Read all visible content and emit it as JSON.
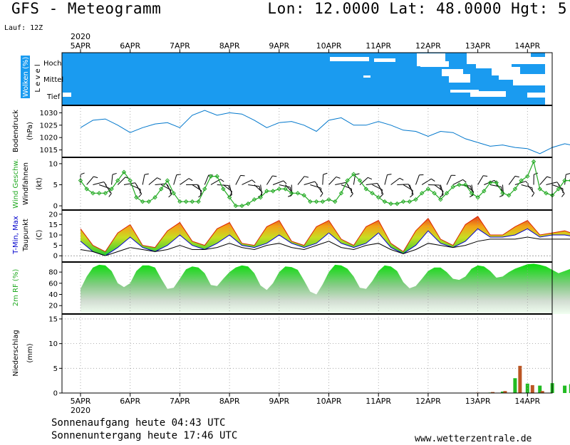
{
  "header": {
    "title": "GFS - Meteogramm",
    "coords": "Lon: 12.0000 Lat: 48.0000 Hgt: 5",
    "run": "Lauf: 12Z"
  },
  "dates": {
    "year": "2020",
    "labels": [
      "5APR",
      "6APR",
      "7APR",
      "8APR",
      "9APR",
      "10APR",
      "11APR",
      "12APR",
      "13APR",
      "14APR"
    ]
  },
  "footer": {
    "sunrise": "Sonnenaufgang heute 04:43 UTC",
    "sunset": "Sonnenuntergang heute 17:46 UTC",
    "credit": "www.wetterzentrale.de"
  },
  "colors": {
    "clouds_bg": "#1a9bf0",
    "pressure": "#0077cc",
    "wind": "#22aa22",
    "tmin": "#0000cc",
    "tmax": "#dd2200",
    "dewpoint": "#000000",
    "rh": "#22c822",
    "precip_green": "#22bb22",
    "precip_brown": "#bb5522"
  },
  "chart_data": [
    {
      "type": "heatmap",
      "panel": "clouds",
      "ylabel": "Wolken (%)",
      "ylabel2": "L e v e l",
      "levels": [
        "Hoch",
        "Mittel",
        "Tief"
      ],
      "note": "cloud cover mostly 100% with gaps from 10APR onward"
    },
    {
      "type": "line",
      "panel": "pressure",
      "ylabel": "Bodendruck",
      "ylabel2": "(hPa)",
      "ylim": [
        1012,
        1033
      ],
      "yticks": [
        1015,
        1020,
        1025,
        1030
      ],
      "x_days": [
        0,
        0.25,
        0.5,
        0.75,
        1,
        1.25,
        1.5,
        1.75,
        2,
        2.25,
        2.5,
        2.75,
        3,
        3.25,
        3.5,
        3.75,
        4,
        4.25,
        4.5,
        4.75,
        5,
        5.25,
        5.5,
        5.75,
        6,
        6.25,
        6.5,
        6.75,
        7,
        7.25,
        7.5,
        7.75,
        8,
        8.25,
        8.5,
        8.75,
        9,
        9.25,
        9.5,
        9.75,
        10
      ],
      "values": [
        1024,
        1027,
        1027.5,
        1025,
        1022,
        1024,
        1025.5,
        1026,
        1024,
        1029,
        1031,
        1029,
        1030,
        1029.5,
        1027,
        1024,
        1026,
        1026.5,
        1025,
        1022.5,
        1027,
        1028,
        1025,
        1025,
        1026.5,
        1025,
        1023,
        1022.5,
        1020.5,
        1022.5,
        1022,
        1019.5,
        1018,
        1016.5,
        1017,
        1016,
        1015.5,
        1013.5,
        1016,
        1017.5,
        1016.5
      ]
    },
    {
      "type": "line",
      "panel": "wind",
      "ylabel": "Wind Geschw.",
      "ylabel2": "Windfahnen",
      "ylabel3": "(kt)",
      "ylim": [
        -1,
        11.5
      ],
      "yticks": [
        0,
        5,
        10
      ],
      "x_days": [
        0,
        0.125,
        0.25,
        0.375,
        0.5,
        0.625,
        0.75,
        0.875,
        1,
        1.125,
        1.25,
        1.375,
        1.5,
        1.625,
        1.75,
        1.875,
        2,
        2.125,
        2.25,
        2.375,
        2.5,
        2.625,
        2.75,
        2.875,
        3,
        3.125,
        3.25,
        3.375,
        3.5,
        3.625,
        3.75,
        3.875,
        4,
        4.125,
        4.25,
        4.375,
        4.5,
        4.625,
        4.75,
        4.875,
        5,
        5.125,
        5.25,
        5.375,
        5.5,
        5.625,
        5.75,
        5.875,
        6,
        6.125,
        6.25,
        6.375,
        6.5,
        6.625,
        6.75,
        6.875,
        7,
        7.125,
        7.25,
        7.375,
        7.5,
        7.625,
        7.75,
        7.875,
        8,
        8.125,
        8.25,
        8.375,
        8.5,
        8.625,
        8.75,
        8.875,
        9,
        9.125,
        9.25,
        9.375,
        9.5,
        9.625,
        9.75,
        9.875,
        10
      ],
      "values": [
        6,
        4,
        3,
        3,
        3,
        4,
        6,
        8,
        6,
        2,
        1,
        1,
        2,
        4,
        6,
        3,
        1,
        1,
        1,
        1,
        4,
        7,
        7,
        4,
        2,
        0,
        0,
        0.5,
        1.5,
        2,
        3.5,
        3.5,
        4,
        4,
        3,
        3,
        2.5,
        1,
        1,
        1,
        1.5,
        1,
        3,
        6,
        7.5,
        6,
        4,
        3,
        2,
        1,
        0.5,
        0.5,
        1,
        1,
        1.5,
        3,
        4,
        3,
        1.5,
        3,
        4.5,
        5,
        5,
        3,
        2,
        3.5,
        5.5,
        5.5,
        3,
        2.5,
        4,
        6,
        7,
        10.5,
        4,
        3,
        2.5,
        4,
        6,
        6,
        6
      ]
    },
    {
      "type": "area",
      "panel": "temperature",
      "ylabel": "T-Min, Max",
      "ylabel2": "Taupunkt",
      "ylabel3": "(C)",
      "ylim": [
        -3,
        22
      ],
      "yticks": [
        0,
        5,
        10,
        15,
        20
      ],
      "x_days": [
        0,
        0.25,
        0.5,
        0.75,
        1,
        1.25,
        1.5,
        1.75,
        2,
        2.25,
        2.5,
        2.75,
        3,
        3.25,
        3.5,
        3.75,
        4,
        4.25,
        4.5,
        4.75,
        5,
        5.25,
        5.5,
        5.75,
        6,
        6.25,
        6.5,
        6.75,
        7,
        7.25,
        7.5,
        7.75,
        8,
        8.25,
        8.5,
        8.75,
        9,
        9.25,
        9.5,
        9.75,
        10
      ],
      "series": [
        {
          "name": "T-Max",
          "values": [
            13,
            5,
            2,
            11,
            15,
            5,
            4,
            12,
            16,
            7,
            5,
            13,
            16,
            6,
            5,
            14,
            17,
            7,
            5,
            14,
            17,
            8,
            5,
            14,
            17,
            6,
            2,
            12,
            18,
            8,
            5,
            15,
            19,
            10,
            10,
            14,
            17,
            10,
            11,
            12,
            10
          ]
        },
        {
          "name": "T-Min",
          "values": [
            7,
            2,
            0,
            4,
            9,
            4,
            2,
            5,
            10,
            5,
            3,
            6,
            10,
            5,
            4,
            6,
            10,
            6,
            4,
            6,
            11,
            6,
            4,
            6,
            11,
            4,
            1,
            5,
            12,
            6,
            4,
            7,
            13,
            9,
            9,
            10,
            13,
            9,
            10,
            10,
            9
          ]
        },
        {
          "name": "Taupunkt",
          "values": [
            3,
            2,
            0,
            2,
            4,
            3,
            2,
            3,
            5,
            3,
            3,
            4,
            6,
            4,
            3,
            5,
            6,
            4,
            3,
            5,
            7,
            4,
            3,
            5,
            6,
            3,
            1,
            3,
            6,
            5,
            4,
            5,
            7,
            8,
            8,
            8,
            9,
            8,
            8,
            8,
            8
          ]
        }
      ]
    },
    {
      "type": "area",
      "panel": "humidity",
      "ylabel": "2m RF (%)",
      "ylim": [
        5,
        98
      ],
      "yticks": [
        20,
        40,
        60,
        80
      ],
      "x_days": [
        0,
        0.125,
        0.25,
        0.375,
        0.5,
        0.625,
        0.75,
        0.875,
        1,
        1.125,
        1.25,
        1.375,
        1.5,
        1.625,
        1.75,
        1.875,
        2,
        2.125,
        2.25,
        2.375,
        2.5,
        2.625,
        2.75,
        2.875,
        3,
        3.125,
        3.25,
        3.375,
        3.5,
        3.625,
        3.75,
        3.875,
        4,
        4.125,
        4.25,
        4.375,
        4.5,
        4.625,
        4.75,
        4.875,
        5,
        5.125,
        5.25,
        5.375,
        5.5,
        5.625,
        5.75,
        5.875,
        6,
        6.125,
        6.25,
        6.375,
        6.5,
        6.625,
        6.75,
        6.875,
        7,
        7.125,
        7.25,
        7.375,
        7.5,
        7.625,
        7.75,
        7.875,
        8,
        8.125,
        8.25,
        8.375,
        8.5,
        8.625,
        8.75,
        8.875,
        9,
        9.125,
        9.25,
        9.375,
        9.5,
        9.625,
        9.75,
        9.875,
        10
      ],
      "values": [
        50,
        72,
        88,
        93,
        92,
        82,
        60,
        53,
        60,
        82,
        92,
        92,
        88,
        68,
        50,
        52,
        68,
        85,
        90,
        88,
        78,
        57,
        55,
        68,
        80,
        88,
        92,
        90,
        78,
        56,
        48,
        60,
        80,
        90,
        89,
        84,
        65,
        45,
        40,
        58,
        80,
        93,
        92,
        86,
        72,
        52,
        50,
        64,
        82,
        92,
        90,
        82,
        62,
        51,
        55,
        68,
        82,
        88,
        88,
        80,
        68,
        66,
        72,
        86,
        92,
        90,
        82,
        70,
        72,
        80,
        86,
        90,
        94,
        95,
        93,
        90,
        84,
        78,
        82,
        86,
        88
      ]
    },
    {
      "type": "bar",
      "panel": "precipitation",
      "ylabel": "Niederschlag",
      "ylabel2": "(mm)",
      "ylim": [
        0,
        16
      ],
      "yticks": [
        0,
        5,
        10,
        15
      ],
      "series": [
        {
          "name": "green",
          "x_days": [
            8.25,
            8.5,
            8.75,
            9.0,
            9.25,
            9.5,
            9.75,
            9.875
          ],
          "values": [
            0.1,
            0.3,
            3.0,
            1.9,
            1.5,
            2.0,
            1.5,
            1.8
          ]
        },
        {
          "name": "brown",
          "x_days": [
            8.0,
            8.3,
            8.55,
            8.85,
            9.1,
            9.3,
            9.95
          ],
          "values": [
            0.1,
            0.2,
            0.4,
            5.5,
            1.6,
            0.4,
            0.3
          ]
        }
      ]
    }
  ]
}
